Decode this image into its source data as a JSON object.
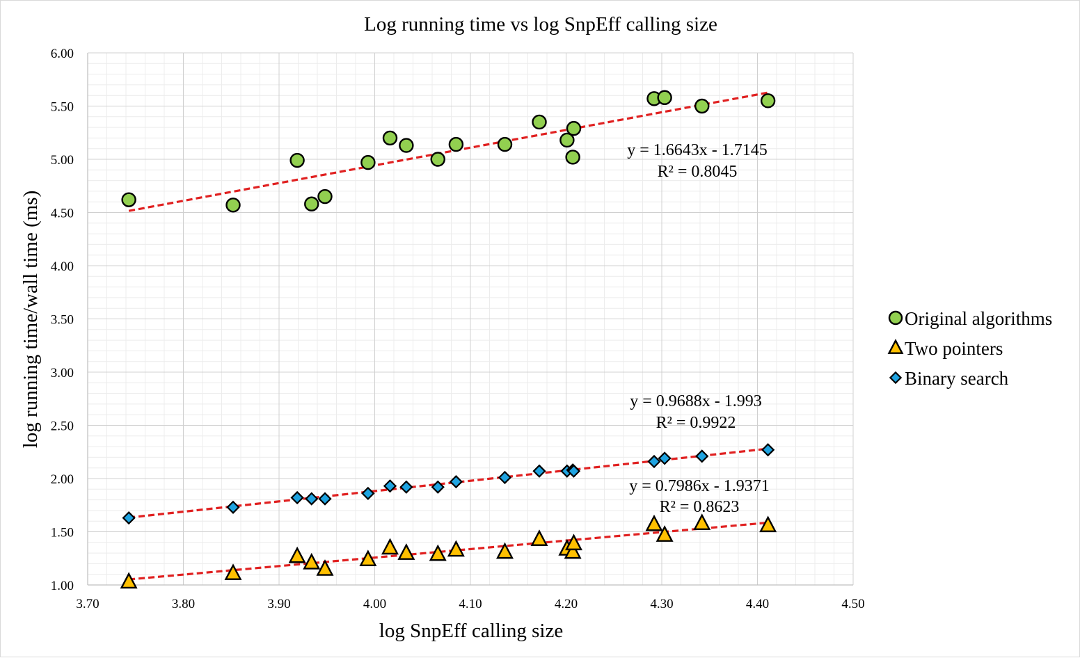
{
  "chart_data": {
    "type": "scatter",
    "title": "Log running time vs log SnpEff calling size",
    "xlabel": "log SnpEff calling size",
    "ylabel": "log running time/wall time (ms)",
    "xlim": [
      3.7,
      4.5
    ],
    "ylim": [
      1.0,
      6.0
    ],
    "x_ticks": [
      "3.70",
      "3.80",
      "3.90",
      "4.00",
      "4.10",
      "4.20",
      "4.30",
      "4.40",
      "4.50"
    ],
    "y_ticks": [
      "1.00",
      "1.50",
      "2.00",
      "2.50",
      "3.00",
      "3.50",
      "4.00",
      "4.50",
      "5.00",
      "5.50",
      "6.00"
    ],
    "grid": true,
    "legend_position": "right",
    "series": [
      {
        "name": "Original algorithms",
        "marker": "circle",
        "color": "#92d050",
        "x": [
          3.743,
          3.852,
          3.919,
          3.934,
          3.948,
          3.993,
          4.016,
          4.033,
          4.066,
          4.085,
          4.136,
          4.172,
          4.201,
          4.207,
          4.208,
          4.292,
          4.303,
          4.342,
          4.411
        ],
        "y": [
          4.62,
          4.57,
          4.99,
          4.58,
          4.65,
          4.97,
          5.2,
          5.13,
          5.0,
          5.14,
          5.14,
          5.35,
          5.18,
          5.02,
          5.29,
          5.57,
          5.58,
          5.5,
          5.55
        ],
        "trendline": {
          "slope": 1.6643,
          "intercept": -1.7145,
          "equation": "y = 1.6643x - 1.7145",
          "r2": "R² = 0.8045"
        }
      },
      {
        "name": "Two pointers",
        "marker": "triangle",
        "color": "#ffc000",
        "x": [
          3.743,
          3.852,
          3.919,
          3.934,
          3.948,
          3.993,
          4.016,
          4.033,
          4.066,
          4.085,
          4.136,
          4.172,
          4.201,
          4.207,
          4.208,
          4.292,
          4.303,
          4.342,
          4.411
        ],
        "y": [
          1.03,
          1.11,
          1.27,
          1.21,
          1.15,
          1.24,
          1.35,
          1.3,
          1.29,
          1.33,
          1.31,
          1.43,
          1.34,
          1.31,
          1.39,
          1.57,
          1.47,
          1.58,
          1.56
        ],
        "trendline": {
          "slope": 0.7986,
          "intercept": -1.9371,
          "equation": "y = 0.7986x - 1.9371",
          "r2": "R² = 0.8623"
        }
      },
      {
        "name": "Binary search",
        "marker": "diamond",
        "color": "#1fa3e0",
        "x": [
          3.743,
          3.852,
          3.919,
          3.934,
          3.948,
          3.993,
          4.016,
          4.033,
          4.066,
          4.085,
          4.136,
          4.172,
          4.201,
          4.207,
          4.208,
          4.292,
          4.303,
          4.342,
          4.411
        ],
        "y": [
          1.63,
          1.73,
          1.82,
          1.81,
          1.81,
          1.86,
          1.93,
          1.92,
          1.92,
          1.97,
          2.01,
          2.07,
          2.07,
          2.08,
          2.07,
          2.16,
          2.19,
          2.21,
          2.27
        ],
        "trendline": {
          "slope": 0.9688,
          "intercept": -1.993,
          "equation": "y = 0.9688x - 1.993",
          "r2": "R² = 0.9922"
        }
      }
    ],
    "trendline_color": "#e02020"
  }
}
